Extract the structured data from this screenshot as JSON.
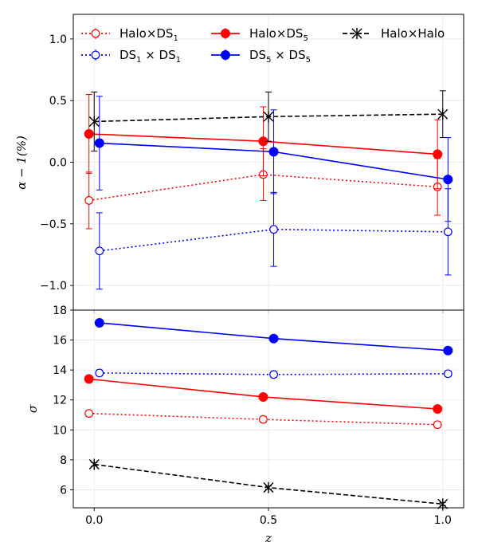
{
  "chart_data": [
    {
      "panel": "top",
      "type": "line",
      "xlabel": "",
      "ylabel": "α − 1(%)",
      "xlim": [
        -0.06,
        1.06
      ],
      "ylim": [
        -1.2,
        1.2
      ],
      "yticks": [
        -1.0,
        -0.5,
        0.0,
        0.5,
        1.0
      ],
      "ytick_labels": [
        "−1.0",
        "−0.5",
        "0.0",
        "0.5",
        "1.0"
      ],
      "grid": true,
      "legend_position": "top",
      "series": [
        {
          "key": "halo_ds1",
          "name": "Halo×DS",
          "name_sub": "1",
          "color": "#ff0000",
          "dash": "dotted",
          "marker": "circle-open",
          "x": [
            -0.015,
            0.485,
            0.985
          ],
          "y": [
            -0.31,
            -0.1,
            -0.2
          ],
          "err": [
            0.23,
            0.21,
            0.23
          ]
        },
        {
          "key": "halo_ds5",
          "name": "Halo×DS",
          "name_sub": "5",
          "color": "#ff0000",
          "dash": "solid",
          "marker": "circle-filled",
          "x": [
            -0.015,
            0.485,
            0.985
          ],
          "y": [
            0.23,
            0.17,
            0.065
          ],
          "err": [
            0.32,
            0.28,
            0.28
          ]
        },
        {
          "key": "halo_halo",
          "name": "Halo×Halo",
          "color": "#000000",
          "dash": "dashed",
          "marker": "x-star",
          "x": [
            0.0,
            0.5,
            1.0
          ],
          "y": [
            0.33,
            0.37,
            0.39
          ],
          "err": [
            0.24,
            0.2,
            0.19
          ]
        },
        {
          "key": "ds1_ds1",
          "name": "DS",
          "name_sub": "1",
          "name_mid": " × DS",
          "name_sub2": "1",
          "color": "#0000ff",
          "dash": "dotted",
          "marker": "circle-open",
          "x": [
            0.015,
            0.515,
            1.015
          ],
          "y": [
            -0.72,
            -0.545,
            -0.565
          ],
          "err": [
            0.31,
            0.3,
            0.35
          ]
        },
        {
          "key": "ds5_ds5",
          "name": "DS",
          "name_sub": "5",
          "name_mid": " × DS",
          "name_sub2": "5",
          "color": "#0000ff",
          "dash": "solid",
          "marker": "circle-filled",
          "x": [
            0.015,
            0.515,
            1.015
          ],
          "y": [
            0.155,
            0.085,
            -0.14
          ],
          "err": [
            0.38,
            0.34,
            0.34
          ]
        }
      ]
    },
    {
      "panel": "bottom",
      "type": "line",
      "xlabel": "z",
      "ylabel": "σ",
      "xlim": [
        -0.06,
        1.06
      ],
      "ylim": [
        4.8,
        18.0
      ],
      "xticks": [
        0.0,
        0.5,
        1.0
      ],
      "xtick_labels": [
        "0.0",
        "0.5",
        "1.0"
      ],
      "yticks": [
        6,
        8,
        10,
        12,
        14,
        16,
        18
      ],
      "ytick_labels": [
        "6",
        "8",
        "10",
        "12",
        "14",
        "16",
        "18"
      ],
      "grid": true,
      "series": [
        {
          "key": "halo_ds1",
          "name": "Halo×DS1",
          "color": "#ff0000",
          "dash": "dotted",
          "marker": "circle-open",
          "x": [
            -0.015,
            0.485,
            0.985
          ],
          "y": [
            11.1,
            10.7,
            10.35
          ],
          "err": [
            0.2,
            0.2,
            0.2
          ]
        },
        {
          "key": "halo_ds5",
          "name": "Halo×DS5",
          "color": "#ff0000",
          "dash": "solid",
          "marker": "circle-filled",
          "x": [
            -0.015,
            0.485,
            0.985
          ],
          "y": [
            13.4,
            12.2,
            11.4
          ],
          "err": [
            0.2,
            0.2,
            0.2
          ]
        },
        {
          "key": "ds1_ds1",
          "name": "DS1×DS1",
          "color": "#0000ff",
          "dash": "dotted",
          "marker": "circle-open",
          "x": [
            0.015,
            0.515,
            1.015
          ],
          "y": [
            13.8,
            13.7,
            13.75
          ],
          "err": [
            0.2,
            0.2,
            0.2
          ]
        },
        {
          "key": "ds5_ds5",
          "name": "DS5×DS5",
          "color": "#0000ff",
          "dash": "solid",
          "marker": "circle-filled",
          "x": [
            0.015,
            0.515,
            1.015
          ],
          "y": [
            17.15,
            16.1,
            15.3
          ],
          "err": [
            0.2,
            0.2,
            0.2
          ]
        },
        {
          "key": "halo_halo",
          "name": "Halo×Halo",
          "color": "#000000",
          "dash": "dashed",
          "marker": "x-star",
          "x": [
            0.0,
            0.5,
            1.0
          ],
          "y": [
            7.7,
            6.15,
            5.05
          ],
          "err": [
            0.1,
            0.1,
            0.1
          ]
        }
      ]
    }
  ]
}
